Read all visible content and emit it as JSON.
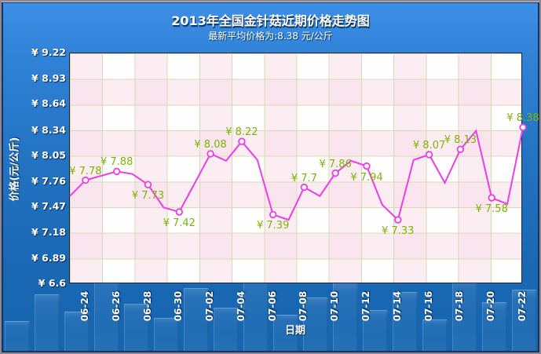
{
  "header": {
    "title": "2013年全国金针菇近期价格走势图",
    "subtitle": "最新平均价格为:8.38 元/公斤"
  },
  "chart_data": {
    "type": "line",
    "title": "2013年全国金针菇近期价格走势图",
    "subtitle": "最新平均价格为:8.38 元/公斤",
    "xlabel": "日期",
    "ylabel": "价格(元/公斤)",
    "ylim": [
      6.6,
      9.22
    ],
    "grid": true,
    "legend": "none",
    "currency": "¥",
    "latest_average_price": "8.38",
    "unit": "元/公斤",
    "line_color": "#ef3ce6",
    "marker_fill": "#ffffff",
    "value_label_color": "#7cb405",
    "y_ticks": [
      {
        "value": 9.22,
        "label": "¥ 9.22"
      },
      {
        "value": 8.93,
        "label": "¥ 8.93"
      },
      {
        "value": 8.64,
        "label": "¥ 8.64"
      },
      {
        "value": 8.34,
        "label": "¥ 8.34"
      },
      {
        "value": 8.05,
        "label": "¥ 8.05"
      },
      {
        "value": 7.76,
        "label": "¥ 7.76"
      },
      {
        "value": 7.47,
        "label": "¥ 7.47"
      },
      {
        "value": 7.18,
        "label": "¥ 7.18"
      },
      {
        "value": 6.89,
        "label": "¥ 6.89"
      },
      {
        "value": 6.6,
        "label": "¥ 6.6"
      }
    ],
    "points": [
      {
        "date": "06-23",
        "value": 7.6
      },
      {
        "date": "06-24",
        "value": 7.78,
        "label": "¥ 7.78",
        "label_pos": "above"
      },
      {
        "date": "06-25",
        "value": 7.83
      },
      {
        "date": "06-26",
        "value": 7.88,
        "label": "¥ 7.88",
        "label_pos": "above"
      },
      {
        "date": "06-27",
        "value": 7.85
      },
      {
        "date": "06-28",
        "value": 7.73,
        "label": "¥ 7.73",
        "label_pos": "below"
      },
      {
        "date": "06-29",
        "value": 7.47
      },
      {
        "date": "06-30",
        "value": 7.42,
        "label": "¥ 7.42",
        "label_pos": "below"
      },
      {
        "date": "07-01",
        "value": 7.75
      },
      {
        "date": "07-02",
        "value": 8.08,
        "label": "¥ 8.08",
        "label_pos": "above"
      },
      {
        "date": "07-03",
        "value": 8.0
      },
      {
        "date": "07-04",
        "value": 8.22,
        "label": "¥ 8.22",
        "label_pos": "above"
      },
      {
        "date": "07-05",
        "value": 8.01
      },
      {
        "date": "07-06",
        "value": 7.39,
        "label": "¥ 7.39",
        "label_pos": "below"
      },
      {
        "date": "07-07",
        "value": 7.33
      },
      {
        "date": "07-08",
        "value": 7.7,
        "label": "¥ 7.7",
        "label_pos": "above"
      },
      {
        "date": "07-09",
        "value": 7.6
      },
      {
        "date": "07-10",
        "value": 7.86,
        "label": "¥ 7.86",
        "label_pos": "above"
      },
      {
        "date": "07-11",
        "value": 8.0
      },
      {
        "date": "07-12",
        "value": 7.94,
        "label": "¥ 7.94",
        "label_pos": "below"
      },
      {
        "date": "07-13",
        "value": 7.5
      },
      {
        "date": "07-14",
        "value": 7.33,
        "label": "¥ 7.33",
        "label_pos": "below"
      },
      {
        "date": "07-15",
        "value": 8.01
      },
      {
        "date": "07-16",
        "value": 8.07,
        "label": "¥ 8.07",
        "label_pos": "above"
      },
      {
        "date": "07-17",
        "value": 7.75
      },
      {
        "date": "07-18",
        "value": 8.13,
        "label": "¥ 8.13",
        "label_pos": "above"
      },
      {
        "date": "07-19",
        "value": 8.34
      },
      {
        "date": "07-20",
        "value": 7.58,
        "label": "¥ 7.58",
        "label_pos": "below"
      },
      {
        "date": "07-21",
        "value": 7.51
      },
      {
        "date": "07-22",
        "value": 8.38,
        "label": "¥ 8.38",
        "label_pos": "above"
      }
    ]
  }
}
